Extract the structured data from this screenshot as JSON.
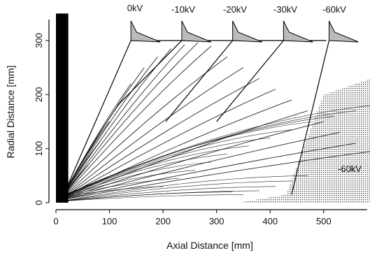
{
  "chart_data": {
    "type": "line",
    "title": "",
    "xlabel": "Axial Distance [mm]",
    "ylabel": "Radial Distance [mm]",
    "xlim": [
      0,
      590
    ],
    "ylim": [
      0,
      355
    ],
    "x_ticks": [
      {
        "value": 0,
        "label": "0"
      },
      {
        "value": 100,
        "label": "100"
      },
      {
        "value": 200,
        "label": "200"
      },
      {
        "value": 300,
        "label": "300"
      },
      {
        "value": 400,
        "label": "400"
      },
      {
        "value": 500,
        "label": "500"
      }
    ],
    "y_ticks": [
      {
        "value": 0,
        "label": "0"
      },
      {
        "value": 100,
        "label": "100"
      },
      {
        "value": 200,
        "label": "200"
      },
      {
        "value": 300,
        "label": "300"
      }
    ],
    "annotations": {
      "voltages": [
        "0kV",
        "-10kV",
        "-20kV",
        "-30kV",
        "-60kV"
      ],
      "region_label": "-60kV"
    },
    "electrodes": [
      {
        "label": "0kV",
        "x": 140
      },
      {
        "label": "-10kV",
        "x": 235
      },
      {
        "label": "-20kV",
        "x": 330
      },
      {
        "label": "-30kV",
        "x": 425
      },
      {
        "label": "-60kV",
        "x": 510
      }
    ],
    "electrode_edges": [
      [
        [
          10,
          5
        ],
        [
          140,
          300
        ]
      ],
      [
        [
          140,
          300
        ],
        [
          258,
          300
        ]
      ],
      [
        [
          115,
          180
        ],
        [
          235,
          300
        ]
      ],
      [
        [
          235,
          300
        ],
        [
          335,
          300
        ]
      ],
      [
        [
          205,
          150
        ],
        [
          330,
          300
        ]
      ],
      [
        [
          330,
          300
        ],
        [
          425,
          300
        ]
      ],
      [
        [
          300,
          150
        ],
        [
          425,
          300
        ]
      ],
      [
        [
          425,
          300
        ],
        [
          505,
          300
        ]
      ],
      [
        [
          440,
          15
        ],
        [
          510,
          300
        ]
      ]
    ],
    "cathode": {
      "x_range": [
        0,
        10
      ],
      "y_range": [
        0,
        350
      ]
    },
    "high_voltage_region": {
      "polygon": [
        [
          340,
          0
        ],
        [
          430,
          15
        ],
        [
          500,
          200
        ],
        [
          590,
          230
        ],
        [
          590,
          0
        ]
      ]
    },
    "trajectory_sets": [
      {
        "origin": [
          8,
          5
        ],
        "ends_x": [
          60,
          80,
          100,
          120,
          140,
          165,
          190,
          215,
          240,
          265,
          290,
          320,
          350,
          380,
          410,
          440,
          470,
          500,
          530,
          560,
          590
        ],
        "ends_y": [
          70,
          110,
          150,
          185,
          220,
          250,
          270,
          285,
          292,
          296,
          290,
          270,
          250,
          230,
          210,
          190,
          170,
          150,
          130,
          110,
          95
        ],
        "bend": 0.35
      },
      {
        "origin": [
          8,
          10
        ],
        "ends_x": [
          200,
          230,
          260,
          290,
          320,
          360,
          400,
          440,
          480,
          520,
          560,
          590
        ],
        "ends_y": [
          30,
          45,
          60,
          75,
          90,
          105,
          120,
          135,
          150,
          160,
          170,
          180
        ],
        "bend": 0.15
      },
      {
        "origin": [
          12,
          3
        ],
        "ends_x": [
          330,
          350,
          380,
          410,
          440,
          470
        ],
        "ends_y": [
          20,
          15,
          22,
          30,
          40,
          50
        ],
        "bend": 0.05
      }
    ],
    "grid": false,
    "legend": "none"
  }
}
